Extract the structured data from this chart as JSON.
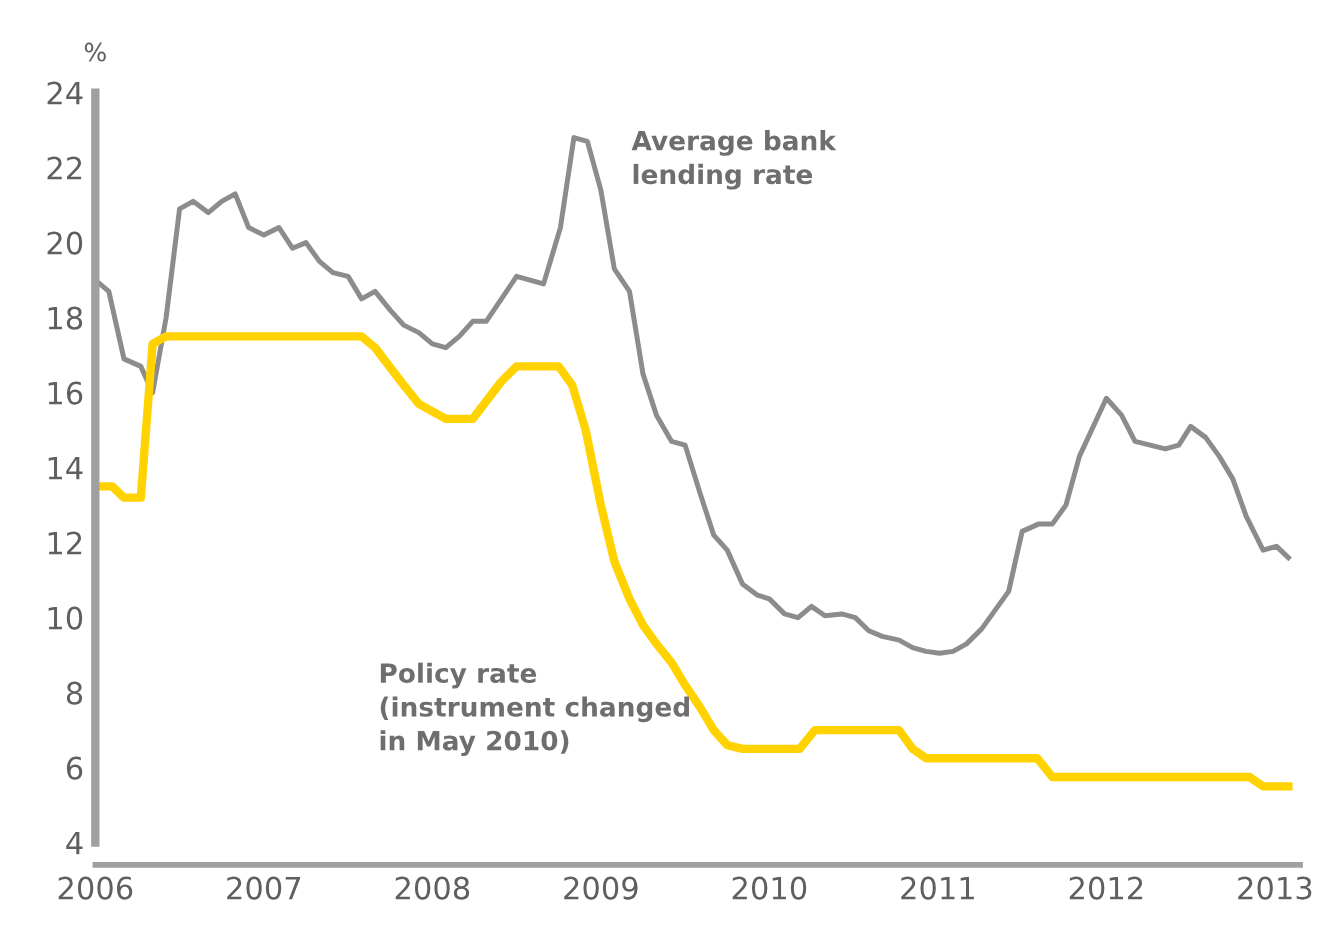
{
  "chart_data": {
    "type": "line",
    "ylabel": "%",
    "xlim": [
      2006,
      2013.15
    ],
    "ylim": [
      4,
      24
    ],
    "xticks": [
      2006,
      2007,
      2008,
      2009,
      2010,
      2011,
      2012,
      2013
    ],
    "yticks": [
      4,
      6,
      8,
      10,
      12,
      14,
      16,
      18,
      20,
      22,
      24
    ],
    "grid": false,
    "legend": false,
    "marker": "none",
    "line_style": "solid",
    "annotations": [
      "Average bank\nlending rate",
      "Policy rate\n(instrument changed\nin May 2010)"
    ],
    "series": [
      {
        "color": "#8c8c8c",
        "x": [
          2006.0,
          2006.08,
          2006.17,
          2006.27,
          2006.34,
          2006.42,
          2006.5,
          2006.58,
          2006.67,
          2006.75,
          2006.83,
          2006.91,
          2007.0,
          2007.09,
          2007.17,
          2007.25,
          2007.33,
          2007.41,
          2007.5,
          2007.58,
          2007.66,
          2007.75,
          2007.83,
          2007.92,
          2008.0,
          2008.08,
          2008.16,
          2008.24,
          2008.32,
          2008.41,
          2008.5,
          2008.58,
          2008.66,
          2008.76,
          2008.84,
          2008.92,
          2009.0,
          2009.08,
          2009.17,
          2009.25,
          2009.33,
          2009.42,
          2009.5,
          2009.59,
          2009.67,
          2009.75,
          2009.84,
          2009.93,
          2010.0,
          2010.09,
          2010.17,
          2010.25,
          2010.33,
          2010.43,
          2010.51,
          2010.59,
          2010.67,
          2010.77,
          2010.85,
          2010.93,
          2011.01,
          2011.09,
          2011.17,
          2011.26,
          2011.34,
          2011.42,
          2011.5,
          2011.6,
          2011.68,
          2011.76,
          2011.84,
          2012.0,
          2012.09,
          2012.17,
          2012.26,
          2012.35,
          2012.43,
          2012.5,
          2012.59,
          2012.67,
          2012.75,
          2012.83,
          2012.93,
          2013.01,
          2013.08
        ],
        "values": [
          19.0,
          18.7,
          16.9,
          16.7,
          16.0,
          18.0,
          20.9,
          21.1,
          20.8,
          21.1,
          21.3,
          20.4,
          20.2,
          20.4,
          19.85,
          20.0,
          19.5,
          19.2,
          19.1,
          18.5,
          18.7,
          18.2,
          17.8,
          17.6,
          17.3,
          17.2,
          17.5,
          17.9,
          17.9,
          18.5,
          19.1,
          19.0,
          18.9,
          20.4,
          22.8,
          22.7,
          21.4,
          19.3,
          18.7,
          16.5,
          15.4,
          14.7,
          14.6,
          13.3,
          12.2,
          11.8,
          10.9,
          10.6,
          10.5,
          10.1,
          10.0,
          10.3,
          10.05,
          10.1,
          10.0,
          9.65,
          9.5,
          9.4,
          9.2,
          9.1,
          9.05,
          9.1,
          9.3,
          9.7,
          10.2,
          10.7,
          12.3,
          12.5,
          12.5,
          13.0,
          14.3,
          15.85,
          15.4,
          14.7,
          14.6,
          14.5,
          14.6,
          15.1,
          14.8,
          14.3,
          13.7,
          12.7,
          11.8,
          11.9,
          11.6
        ]
      },
      {
        "color": "#ffd200",
        "x": [
          2006.0,
          2006.1,
          2006.17,
          2006.27,
          2006.34,
          2006.42,
          2007.58,
          2007.66,
          2007.83,
          2007.92,
          2008.0,
          2008.08,
          2008.24,
          2008.41,
          2008.5,
          2008.75,
          2008.83,
          2008.91,
          2009.0,
          2009.08,
          2009.17,
          2009.25,
          2009.33,
          2009.42,
          2009.5,
          2009.59,
          2009.67,
          2009.75,
          2009.84,
          2010.18,
          2010.27,
          2010.77,
          2010.85,
          2010.93,
          2011.59,
          2011.68,
          2012.85,
          2012.93,
          2013.08
        ],
        "values": [
          13.5,
          13.5,
          13.2,
          13.2,
          17.3,
          17.5,
          17.5,
          17.2,
          16.2,
          15.7,
          15.5,
          15.3,
          15.3,
          16.3,
          16.7,
          16.7,
          16.2,
          15.0,
          13.0,
          11.5,
          10.5,
          9.8,
          9.3,
          8.8,
          8.2,
          7.6,
          7.0,
          6.6,
          6.5,
          6.5,
          7.0,
          7.0,
          6.5,
          6.25,
          6.25,
          5.75,
          5.75,
          5.5,
          5.5
        ]
      }
    ]
  }
}
